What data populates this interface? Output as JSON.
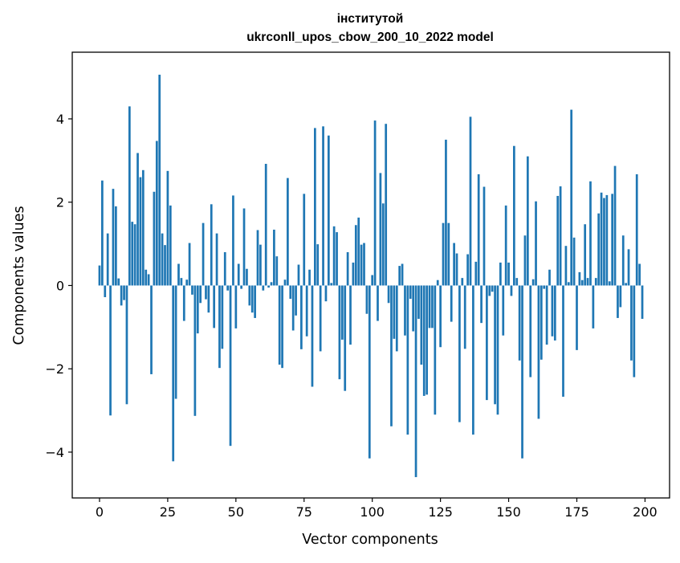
{
  "chart_data": {
    "type": "bar",
    "title": "інститутой",
    "subtitle": "ukrconll_upos_cbow_200_10_2022 model",
    "xlabel": "Vector components",
    "ylabel": "Components values",
    "xlim": [
      -10,
      209
    ],
    "ylim": [
      -5.1,
      5.6
    ],
    "xticks": [
      0,
      25,
      50,
      75,
      100,
      125,
      150,
      175,
      200
    ],
    "yticks": [
      -4,
      -2,
      0,
      2,
      4
    ],
    "xtick_labels": [
      "0",
      "25",
      "50",
      "75",
      "100",
      "125",
      "150",
      "175",
      "200"
    ],
    "ytick_labels": [
      "−4",
      "−2",
      "0",
      "2",
      "4"
    ],
    "grid": false,
    "legend": "none",
    "bar_color": "#1f77b4",
    "x": [
      0,
      1,
      2,
      3,
      4,
      5,
      6,
      7,
      8,
      9,
      10,
      11,
      12,
      13,
      14,
      15,
      16,
      17,
      18,
      19,
      20,
      21,
      22,
      23,
      24,
      25,
      26,
      27,
      28,
      29,
      30,
      31,
      32,
      33,
      34,
      35,
      36,
      37,
      38,
      39,
      40,
      41,
      42,
      43,
      44,
      45,
      46,
      47,
      48,
      49,
      50,
      51,
      52,
      53,
      54,
      55,
      56,
      57,
      58,
      59,
      60,
      61,
      62,
      63,
      64,
      65,
      66,
      67,
      68,
      69,
      70,
      71,
      72,
      73,
      74,
      75,
      76,
      77,
      78,
      79,
      80,
      81,
      82,
      83,
      84,
      85,
      86,
      87,
      88,
      89,
      90,
      91,
      92,
      93,
      94,
      95,
      96,
      97,
      98,
      99,
      100,
      101,
      102,
      103,
      104,
      105,
      106,
      107,
      108,
      109,
      110,
      111,
      112,
      113,
      114,
      115,
      116,
      117,
      118,
      119,
      120,
      121,
      122,
      123,
      124,
      125,
      126,
      127,
      128,
      129,
      130,
      131,
      132,
      133,
      134,
      135,
      136,
      137,
      138,
      139,
      140,
      141,
      142,
      143,
      144,
      145,
      146,
      147,
      148,
      149,
      150,
      151,
      152,
      153,
      154,
      155,
      156,
      157,
      158,
      159,
      160,
      161,
      162,
      163,
      164,
      165,
      166,
      167,
      168,
      169,
      170,
      171,
      172,
      173,
      174,
      175,
      176,
      177,
      178,
      179,
      180,
      181,
      182,
      183,
      184,
      185,
      186,
      187,
      188,
      189,
      190,
      191,
      192,
      193,
      194,
      195,
      196,
      197,
      198,
      199
    ],
    "values": [
      0.48,
      2.52,
      -0.28,
      1.25,
      -3.12,
      2.32,
      1.9,
      0.17,
      -0.48,
      -0.35,
      -2.85,
      4.3,
      1.53,
      1.47,
      3.18,
      2.6,
      2.77,
      0.38,
      0.27,
      -2.13,
      2.25,
      3.47,
      5.06,
      1.25,
      0.97,
      2.75,
      1.92,
      -4.22,
      -2.72,
      0.52,
      0.18,
      -0.85,
      0.14,
      1.02,
      -0.22,
      -3.13,
      -1.15,
      -0.42,
      1.5,
      -0.33,
      -0.65,
      1.95,
      -1.02,
      1.25,
      -1.98,
      -1.52,
      0.8,
      -0.12,
      -3.85,
      2.16,
      -1.03,
      0.52,
      -0.08,
      1.85,
      0.4,
      -0.48,
      -0.65,
      -0.78,
      1.33,
      0.98,
      -0.12,
      2.92,
      -0.05,
      0.08,
      1.34,
      0.7,
      -1.9,
      -1.98,
      0.14,
      2.58,
      -0.32,
      -1.08,
      -0.72,
      0.5,
      -1.53,
      2.2,
      -1.22,
      0.38,
      -2.43,
      3.78,
      0.99,
      -1.58,
      3.82,
      -0.38,
      3.6,
      0.06,
      1.42,
      1.28,
      -2.25,
      -1.3,
      -2.53,
      0.8,
      -1.42,
      0.55,
      1.45,
      1.63,
      0.98,
      1.02,
      -0.68,
      -4.15,
      0.25,
      3.96,
      -0.85,
      2.7,
      1.97,
      3.88,
      -0.42,
      -3.38,
      -1.28,
      -1.58,
      0.47,
      0.52,
      -1.2,
      -3.58,
      -0.32,
      -1.1,
      -4.6,
      -0.8,
      -1.9,
      -2.65,
      -2.62,
      -1.02,
      -1.02,
      -3.1,
      0.13,
      -1.48,
      1.5,
      3.5,
      1.5,
      -0.87,
      1.02,
      0.77,
      -3.28,
      0.18,
      -1.52,
      0.75,
      4.05,
      -3.58,
      0.57,
      2.67,
      -0.9,
      2.37,
      -2.75,
      -0.25,
      -0.15,
      -2.85,
      -3.1,
      0.55,
      -1.2,
      1.92,
      0.55,
      -0.25,
      3.35,
      0.18,
      -1.8,
      -4.15,
      1.2,
      3.1,
      -2.2,
      0.15,
      2.02,
      -3.2,
      -1.78,
      -0.08,
      -1.42,
      0.38,
      -1.22,
      -1.32,
      2.15,
      2.38,
      -2.67,
      0.95,
      0.08,
      4.22,
      1.15,
      -1.55,
      0.32,
      0.13,
      1.47,
      0.18,
      2.5,
      -1.03,
      0.18,
      1.73,
      2.23,
      2.1,
      2.17,
      0.1,
      2.2,
      2.87,
      -0.78,
      -0.52,
      1.2,
      0.06,
      0.87,
      -1.8,
      -2.2,
      2.67,
      0.52,
      -0.8
    ]
  }
}
